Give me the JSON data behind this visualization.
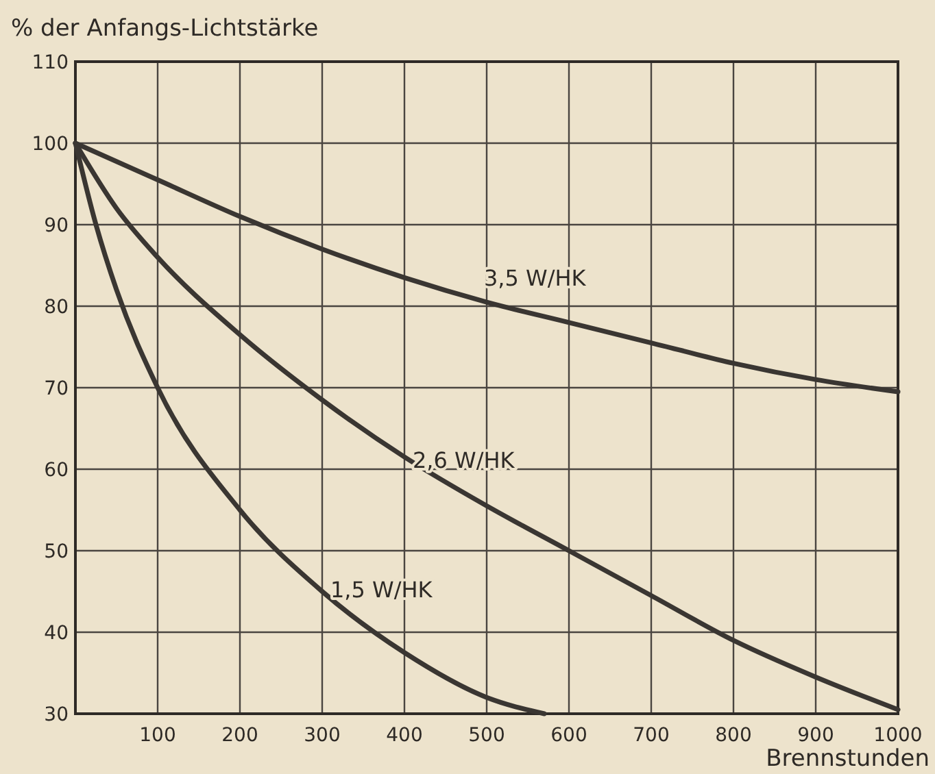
{
  "chart_data": {
    "type": "line",
    "ylabel": "% der Anfangs-Lichtstärke",
    "xlabel": "Brennstunden",
    "xlim": [
      0,
      1000
    ],
    "ylim": [
      30,
      110
    ],
    "xticks": [
      100,
      200,
      300,
      400,
      500,
      600,
      700,
      800,
      900,
      1000
    ],
    "yticks": [
      30,
      40,
      50,
      60,
      70,
      80,
      90,
      100,
      110
    ],
    "grid": true,
    "line_style": "solid",
    "marker": "none",
    "series": [
      {
        "name": "3,5 W/HK",
        "color": "#3a3632",
        "x": [
          0,
          100,
          200,
          300,
          400,
          500,
          600,
          700,
          800,
          900,
          1000
        ],
        "values": [
          100,
          95.5,
          91,
          87,
          83.5,
          80.5,
          78,
          75.5,
          73,
          71,
          69.5
        ]
      },
      {
        "name": "2,6 W/HK",
        "color": "#3a3632",
        "x": [
          0,
          50,
          100,
          200,
          300,
          400,
          500,
          600,
          700,
          800,
          900,
          1000
        ],
        "values": [
          100,
          92,
          86,
          76.5,
          68.5,
          61.5,
          55.5,
          50,
          44.5,
          39,
          34.5,
          30.5
        ]
      },
      {
        "name": "1,5 W/HK",
        "color": "#3a3632",
        "x": [
          0,
          25,
          50,
          100,
          200,
          300,
          400,
          500,
          570
        ],
        "values": [
          100,
          90,
          82,
          70,
          55,
          45,
          37.5,
          32,
          30
        ]
      }
    ]
  }
}
